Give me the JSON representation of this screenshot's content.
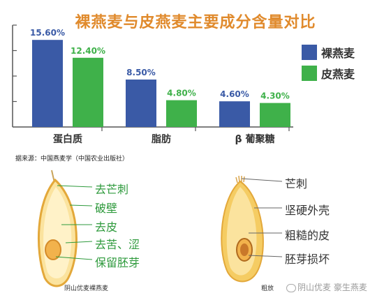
{
  "chart_data": {
    "type": "bar",
    "title": "裸燕麦与皮燕麦主要成分含量对比",
    "categories": [
      "蛋白质",
      "脂肪",
      "β 葡聚糖"
    ],
    "series": [
      {
        "name": "裸燕麦",
        "color": "#3a5aa6",
        "values": [
          15.6,
          8.5,
          4.6
        ],
        "labels": [
          "15.60%",
          "8.50%",
          "4.60%"
        ]
      },
      {
        "name": "皮燕麦",
        "color": "#3fb14a",
        "values": [
          12.4,
          4.8,
          4.3
        ],
        "labels": [
          "12.40%",
          "4.80%",
          "4.30%"
        ]
      }
    ],
    "ylim": [
      0,
      17
    ],
    "grid": false,
    "legend": "top-right",
    "xlabel": "",
    "ylabel": ""
  },
  "source": "据来源：中国燕麦学（中国农业出版社）",
  "left_panel": {
    "annotations": [
      "去芒刺",
      "破壁",
      "去皮",
      "去苦、涩",
      "保留胚芽"
    ],
    "caption": "阴山优麦裸燕麦"
  },
  "right_panel": {
    "annotations": [
      "芒刺",
      "坚硬外壳",
      "粗糙的皮",
      "胚芽损坏"
    ],
    "caption": "粗放"
  },
  "watermark": "阴山优麦 豪生燕麦",
  "colors": {
    "title": "#e08a2c",
    "annotation_green": "#2e9a3c",
    "grain_yellow": "#f7cf6a",
    "grain_outline": "#e3a83a"
  }
}
